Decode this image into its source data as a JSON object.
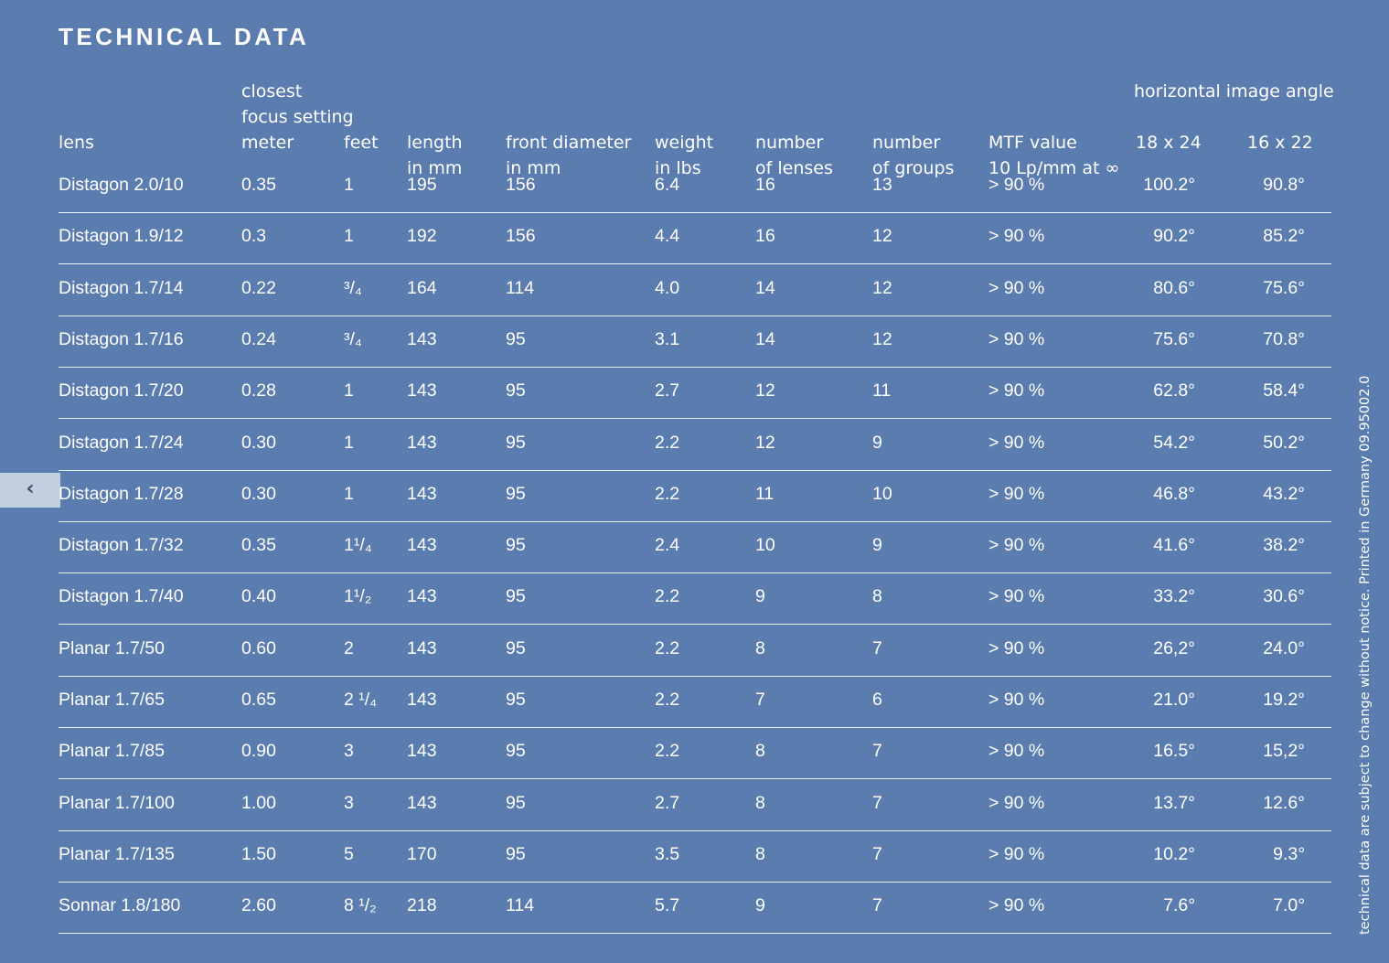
{
  "title": "TECHNICAL DATA",
  "back_icon": "chevron-left-icon",
  "back_glyph": "‹",
  "side_note": "technical data are subject to change without notice. Printed in Germany 09.95002.0",
  "headers": {
    "lens": "lens",
    "closest_focus_line1": "closest",
    "closest_focus_line2": "focus setting",
    "meter": "meter",
    "feet": "feet",
    "length_line1": "length",
    "length_line2": "in mm",
    "front_diameter_line1": "front diameter",
    "front_diameter_line2": "in mm",
    "weight_line1": "weight",
    "weight_line2": "in lbs",
    "lenses_line1": "number",
    "lenses_line2": "of lenses",
    "groups_line1": "number",
    "groups_line2": "of groups",
    "mtf_line1": "MTF value",
    "mtf_line2": "10 Lp/mm at ∞",
    "image_angle": "horizontal image angle",
    "angle_18x24": "18 x 24",
    "angle_16x22": "16 x 22"
  },
  "rows": [
    {
      "lens": "Distagon 2.0/10",
      "meter": "0.35",
      "feet": "1",
      "length": "195",
      "front": "156",
      "weight": "6.4",
      "lenses": "16",
      "groups": "13",
      "mtf": "> 90 %",
      "a18": "100.2°",
      "a16": "90.8°"
    },
    {
      "lens": "Distagon 1.9/12",
      "meter": "0.3",
      "feet": "1",
      "length": "192",
      "front": "156",
      "weight": "4.4",
      "lenses": "16",
      "groups": "12",
      "mtf": "> 90 %",
      "a18": "90.2°",
      "a16": "85.2°"
    },
    {
      "lens": "Distagon 1.7/14",
      "meter": "0.22",
      "feet": "³/₄",
      "length": "164",
      "front": "114",
      "weight": "4.0",
      "lenses": "14",
      "groups": "12",
      "mtf": "> 90 %",
      "a18": "80.6°",
      "a16": "75.6°"
    },
    {
      "lens": "Distagon 1.7/16",
      "meter": "0.24",
      "feet": "³/₄",
      "length": "143",
      "front": "95",
      "weight": "3.1",
      "lenses": "14",
      "groups": "12",
      "mtf": "> 90 %",
      "a18": "75.6°",
      "a16": "70.8°"
    },
    {
      "lens": "Distagon 1.7/20",
      "meter": "0.28",
      "feet": "1",
      "length": "143",
      "front": "95",
      "weight": "2.7",
      "lenses": "12",
      "groups": "11",
      "mtf": "> 90 %",
      "a18": "62.8°",
      "a16": "58.4°"
    },
    {
      "lens": "Distagon 1.7/24",
      "meter": "0.30",
      "feet": "1",
      "length": "143",
      "front": "95",
      "weight": "2.2",
      "lenses": "12",
      "groups": "9",
      "mtf": "> 90 %",
      "a18": "54.2°",
      "a16": "50.2°"
    },
    {
      "lens": "Distagon 1.7/28",
      "meter": "0.30",
      "feet": "1",
      "length": "143",
      "front": "95",
      "weight": "2.2",
      "lenses": "11",
      "groups": "10",
      "mtf": "> 90 %",
      "a18": "46.8°",
      "a16": "43.2°"
    },
    {
      "lens": "Distagon 1.7/32",
      "meter": "0.35",
      "feet": "1¹/₄",
      "length": "143",
      "front": "95",
      "weight": "2.4",
      "lenses": "10",
      "groups": "9",
      "mtf": "> 90 %",
      "a18": "41.6°",
      "a16": "38.2°"
    },
    {
      "lens": "Distagon 1.7/40",
      "meter": "0.40",
      "feet": "1¹/₂",
      "length": "143",
      "front": "95",
      "weight": "2.2",
      "lenses": "9",
      "groups": "8",
      "mtf": "> 90 %",
      "a18": "33.2°",
      "a16": "30.6°"
    },
    {
      "lens": "Planar 1.7/50",
      "meter": "0.60",
      "feet": "2",
      "length": "143",
      "front": "95",
      "weight": "2.2",
      "lenses": "8",
      "groups": "7",
      "mtf": "> 90 %",
      "a18": "26,2°",
      "a16": "24.0°"
    },
    {
      "lens": "Planar 1.7/65",
      "meter": "0.65",
      "feet": "2 ¹/₄",
      "length": "143",
      "front": "95",
      "weight": "2.2",
      "lenses": "7",
      "groups": "6",
      "mtf": "> 90 %",
      "a18": "21.0°",
      "a16": "19.2°"
    },
    {
      "lens": "Planar 1.7/85",
      "meter": "0.90",
      "feet": "3",
      "length": "143",
      "front": "95",
      "weight": "2.2",
      "lenses": "8",
      "groups": "7",
      "mtf": "> 90 %",
      "a18": "16.5°",
      "a16": "15,2°"
    },
    {
      "lens": "Planar 1.7/100",
      "meter": "1.00",
      "feet": "3",
      "length": "143",
      "front": "95",
      "weight": "2.7",
      "lenses": "8",
      "groups": "7",
      "mtf": "> 90 %",
      "a18": "13.7°",
      "a16": "12.6°"
    },
    {
      "lens": "Planar 1.7/135",
      "meter": "1.50",
      "feet": "5",
      "length": "170",
      "front": "95",
      "weight": "3.5",
      "lenses": "8",
      "groups": "7",
      "mtf": "> 90 %",
      "a18": "10.2°",
      "a16": "9.3°"
    },
    {
      "lens": "Sonnar 1.8/180",
      "meter": "2.60",
      "feet": "8 ¹/₂",
      "length": "218",
      "front": "114",
      "weight": "5.7",
      "lenses": "9",
      "groups": "7",
      "mtf": "> 90 %",
      "a18": "7.6°",
      "a16": "7.0°"
    }
  ]
}
